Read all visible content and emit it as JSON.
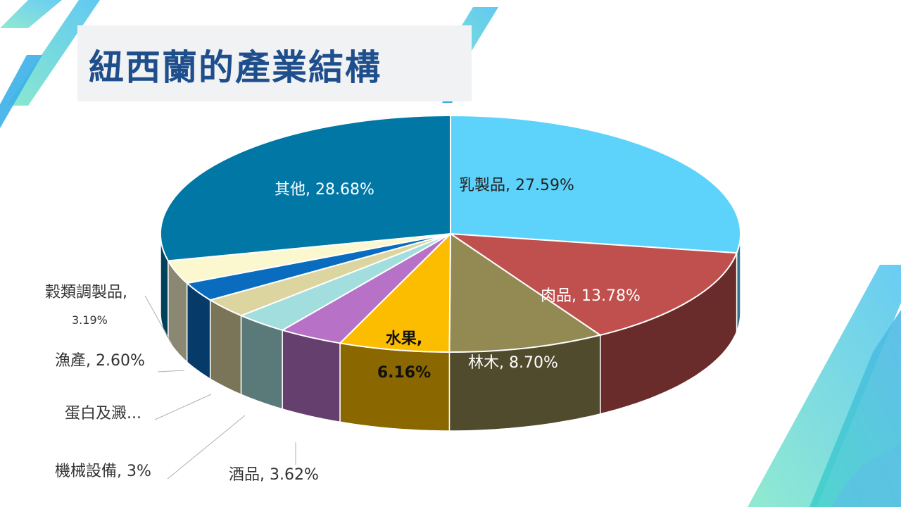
{
  "slide": {
    "title": "紐西蘭的產業結構"
  },
  "chart_data": {
    "type": "pie",
    "style": "3d-exploded-perspective",
    "title": "",
    "series": [
      {
        "label": "乳製品",
        "sep": ", ",
        "value_text": "27.59%",
        "value": 27.59,
        "color": "#5dd3fb"
      },
      {
        "label": "肉品",
        "sep": ", ",
        "value_text": "13.78%",
        "value": 13.78,
        "color": "#c0504d"
      },
      {
        "label": "林木",
        "sep": ", ",
        "value_text": "8.70%",
        "value": 8.7,
        "color": "#938953"
      },
      {
        "label": "水果",
        "sep": ",",
        "value_text": "6.16%",
        "value": 6.16,
        "color": "#fcbc00"
      },
      {
        "label": "酒品",
        "sep": ", ",
        "value_text": "3.62%",
        "value": 3.62,
        "color": "#b772c7"
      },
      {
        "label": "機械設備",
        "sep": ", ",
        "value_text": "3%",
        "value": 3.0,
        "color": "#a3dede"
      },
      {
        "label": "蛋白及澱...",
        "sep": "",
        "value_text": "",
        "value": 2.7,
        "color": "#ddd5a0"
      },
      {
        "label": "漁產",
        "sep": ", ",
        "value_text": "2.60%",
        "value": 2.6,
        "color": "#0a6cbf"
      },
      {
        "label": "穀類調製品",
        "sep": ",",
        "value_text": "3.19%",
        "value": 3.19,
        "color": "#fbf8cf"
      },
      {
        "label": "其他",
        "sep": ", ",
        "value_text": "28.68%",
        "value": 28.68,
        "color": "#0177a6"
      }
    ]
  }
}
